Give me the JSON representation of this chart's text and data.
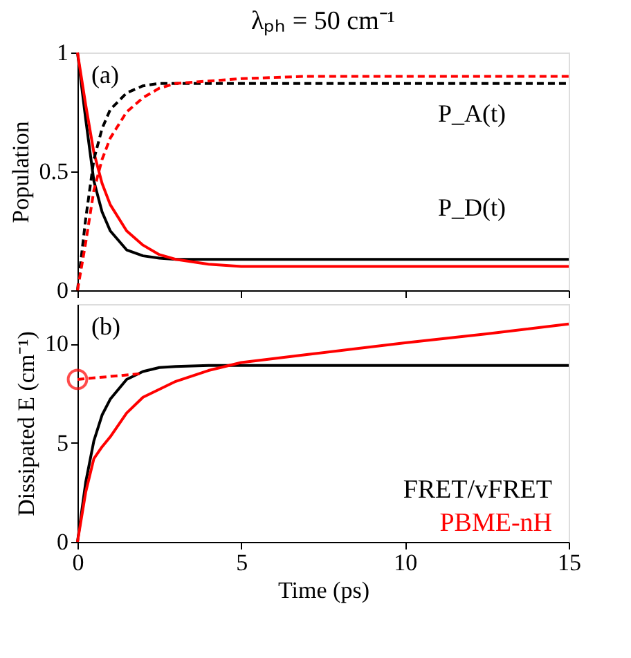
{
  "chart_data": [
    {
      "type": "line",
      "title": "λₚₕ = 50 cm⁻¹",
      "ylabel": "Population",
      "x": [
        0,
        0.25,
        0.5,
        0.75,
        1,
        1.5,
        2,
        2.5,
        3,
        4,
        5,
        7,
        10,
        15
      ],
      "xlim": [
        0,
        15
      ],
      "xticks": [
        0,
        5,
        10,
        15
      ],
      "ylim": [
        0,
        1
      ],
      "yticks": [
        0,
        0.5,
        1
      ],
      "tick_labels": "y",
      "grid": false,
      "series": [
        {
          "color": "#000000",
          "line_style": "solid",
          "values": [
            1,
            0.72,
            0.46,
            0.33,
            0.25,
            0.17,
            0.145,
            0.135,
            0.13,
            0.13,
            0.13,
            0.13,
            0.13,
            0.13
          ]
        },
        {
          "color": "#ff0000",
          "line_style": "solid",
          "values": [
            1,
            0.78,
            0.58,
            0.45,
            0.36,
            0.25,
            0.19,
            0.15,
            0.13,
            0.11,
            0.1,
            0.1,
            0.1,
            0.1
          ]
        },
        {
          "color": "#000000",
          "line_style": "dashed",
          "values": [
            0,
            0.3,
            0.55,
            0.68,
            0.76,
            0.83,
            0.86,
            0.87,
            0.87,
            0.87,
            0.87,
            0.87,
            0.87,
            0.87
          ]
        },
        {
          "color": "#ff0000",
          "line_style": "dashed",
          "values": [
            0,
            0.2,
            0.42,
            0.55,
            0.64,
            0.75,
            0.81,
            0.85,
            0.87,
            0.88,
            0.89,
            0.9,
            0.9,
            0.9
          ]
        }
      ],
      "annotations": [
        "(a)",
        "P_A(t)",
        "P_D(t)"
      ]
    },
    {
      "type": "line",
      "xlabel": "Time (ps)",
      "ylabel": "Dissipated E (cm⁻¹)",
      "xlim": [
        0,
        15
      ],
      "xticks": [
        0,
        5,
        10,
        15
      ],
      "ylim": [
        0,
        12
      ],
      "yticks": [
        0,
        5,
        10
      ],
      "grid": false,
      "legend": "bottom right",
      "series": [
        {
          "name": "FRET/vFRET",
          "color": "#000000",
          "line_style": "solid",
          "x": [
            0,
            0.25,
            0.5,
            0.75,
            1,
            1.5,
            2,
            2.5,
            3,
            4,
            5,
            7,
            10,
            15
          ],
          "values": [
            0,
            3,
            5.1,
            6.4,
            7.2,
            8.2,
            8.6,
            8.8,
            8.85,
            8.9,
            8.9,
            8.9,
            8.9,
            8.9
          ]
        },
        {
          "name": "PBME-nH",
          "color": "#ff0000",
          "line_style": "solid",
          "x": [
            0,
            0.25,
            0.5,
            0.75,
            1,
            1.5,
            2,
            3,
            4,
            5,
            7,
            10,
            12.5,
            15
          ],
          "values": [
            0,
            2.5,
            4.2,
            4.8,
            5.3,
            6.5,
            7.3,
            8.1,
            8.65,
            9.05,
            9.45,
            10.05,
            10.5,
            11
          ]
        },
        {
          "color": "#ff0000",
          "line_style": "dashed",
          "x": [
            0,
            1,
            2
          ],
          "values": [
            8.2,
            8.35,
            8.5
          ]
        },
        {
          "type": "scatter",
          "marker": "circle",
          "color": "#ff0000",
          "x": [
            0
          ],
          "values": [
            8.2
          ]
        }
      ],
      "annotations": [
        "(b)"
      ]
    }
  ]
}
